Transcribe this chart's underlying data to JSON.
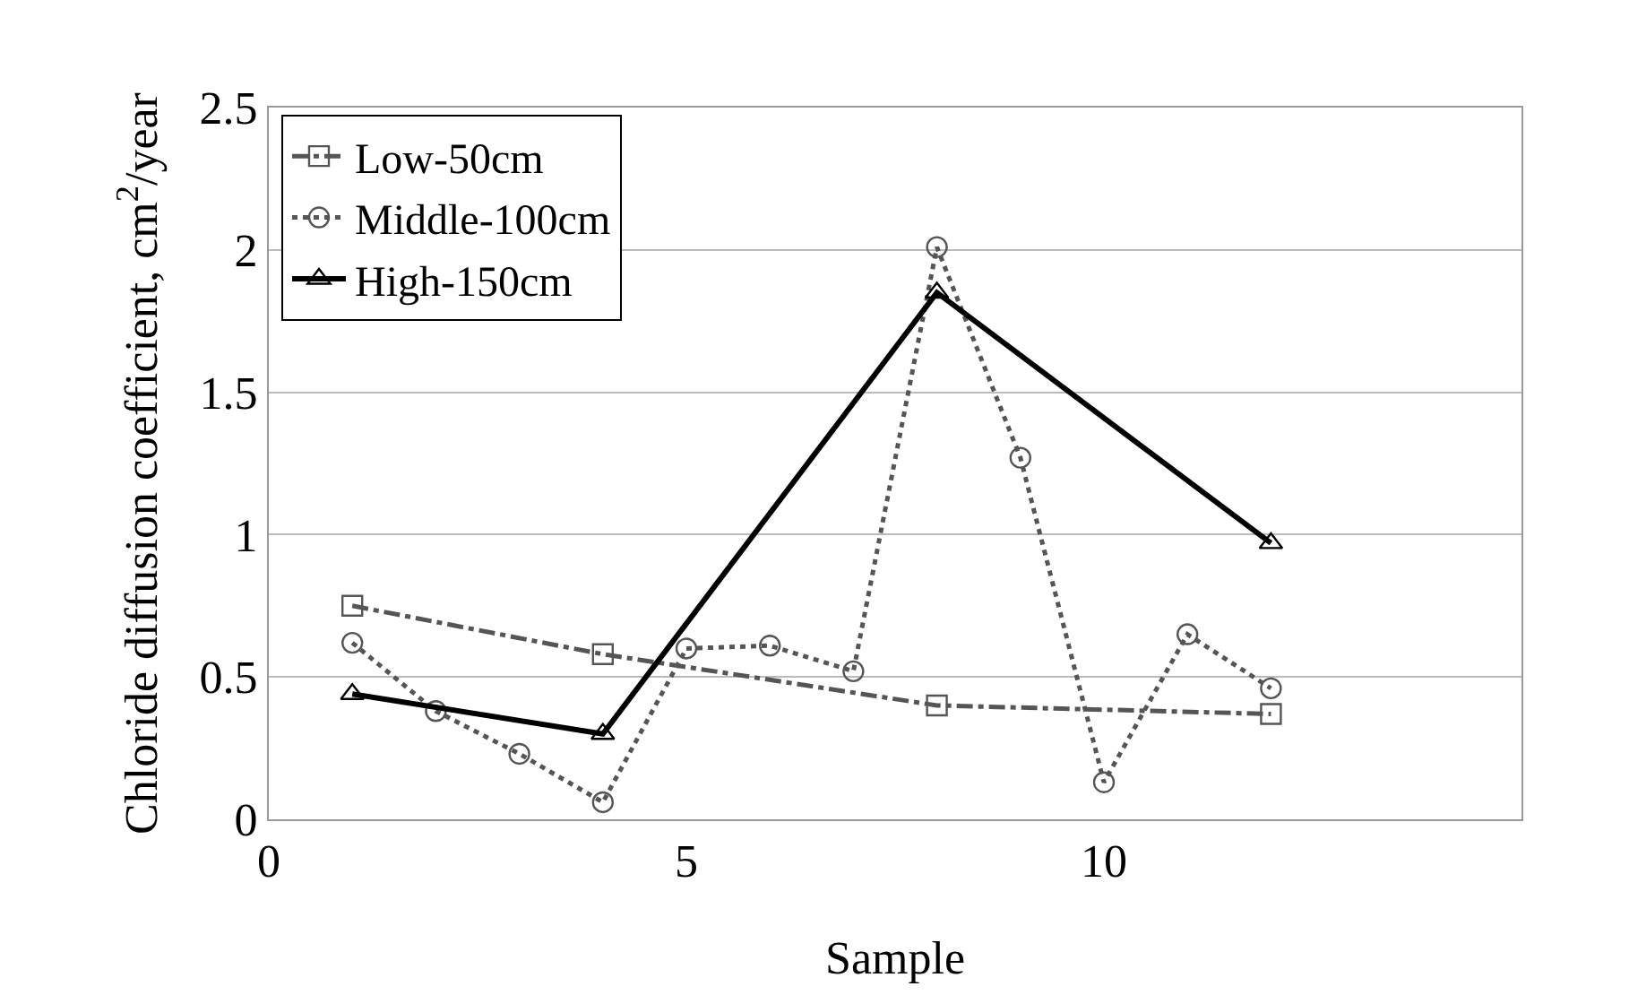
{
  "chart_data": {
    "type": "line",
    "xlabel": "Sample",
    "ylabel": "Chloride diffusion coefficient, cm$^{2}$/year",
    "xlim": [
      0,
      15
    ],
    "xticks": [
      0,
      5,
      10
    ],
    "ylim": [
      0,
      2.5
    ],
    "yticks": [
      0,
      0.5,
      1,
      1.5,
      2,
      2.5
    ],
    "grid": "y",
    "legend": "top left",
    "series": [
      {
        "name": "Low-50cm",
        "color": "#555555",
        "x": [
          1,
          4,
          8,
          12
        ],
        "values": [
          0.75,
          0.58,
          0.4,
          0.37
        ],
        "marker": "square",
        "line_style": "dashdot"
      },
      {
        "name": "Middle-100cm",
        "color": "#555555",
        "x": [
          1,
          2,
          3,
          4,
          5,
          6,
          7,
          8,
          9,
          10,
          11,
          12
        ],
        "values": [
          0.62,
          0.38,
          0.23,
          0.06,
          0.6,
          0.61,
          0.52,
          2.01,
          1.27,
          0.13,
          0.65,
          0.46
        ],
        "marker": "circle",
        "line_style": "dotted"
      },
      {
        "name": "High-150cm",
        "color": "#000000",
        "x": [
          1,
          4,
          8,
          12
        ],
        "values": [
          0.44,
          0.3,
          1.85,
          0.97
        ],
        "marker": "triangle",
        "line_style": "solid"
      }
    ]
  }
}
